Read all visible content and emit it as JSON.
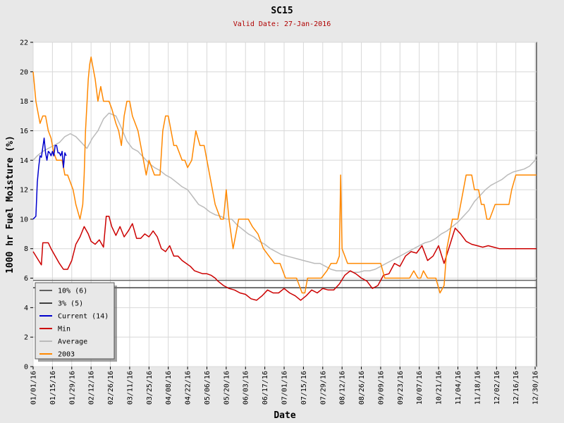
{
  "chart_data": {
    "type": "line",
    "title": "SC15",
    "subtitle": "Valid Date: 27-Jan-2016",
    "xlabel": "Date",
    "ylabel": "1000 hr Fuel Moisture (%)",
    "ylim": [
      0,
      22
    ],
    "yticks": [
      0,
      2,
      4,
      6,
      8,
      10,
      12,
      14,
      16,
      18,
      20,
      22
    ],
    "xlim": [
      "01/01/16",
      "12/31/16"
    ],
    "xticks": [
      "01/01/16",
      "01/15/16",
      "01/29/16",
      "02/12/16",
      "02/26/16",
      "03/11/16",
      "03/25/16",
      "04/08/16",
      "04/22/16",
      "05/06/16",
      "05/20/16",
      "06/03/16",
      "06/17/16",
      "07/01/16",
      "07/15/16",
      "07/29/16",
      "08/12/16",
      "08/26/16",
      "09/09/16",
      "09/23/16",
      "10/07/16",
      "10/21/16",
      "11/04/16",
      "11/18/16",
      "12/02/16",
      "12/16/16",
      "12/30/16"
    ],
    "grid": true,
    "legend_position": "bottom-left",
    "thresholds": [
      {
        "name": "10% (6)",
        "value": 5.85,
        "color": "#606060"
      },
      {
        "name": "3% (5)",
        "value": 5.35,
        "color": "#404040"
      }
    ],
    "series": [
      {
        "name": "Current (14)",
        "color": "#0000cc",
        "x": [
          "01/01/16",
          "01/03/16",
          "01/04/16",
          "01/05/16",
          "01/06/16",
          "01/07/16",
          "01/09/16",
          "01/10/16",
          "01/11/16",
          "01/12/16",
          "01/13/16",
          "01/14/16",
          "01/15/16",
          "01/16/16",
          "01/17/16",
          "01/18/16",
          "01/19/16",
          "01/20/16",
          "01/21/16",
          "01/22/16",
          "01/23/16",
          "01/24/16",
          "01/25/16"
        ],
        "y": [
          10,
          10.2,
          12.5,
          13.5,
          14.3,
          14.2,
          15.5,
          14.5,
          14,
          14.6,
          14.5,
          14.3,
          14.6,
          14.3,
          15,
          15,
          14.5,
          14.5,
          14.3,
          14.6,
          13.5,
          14.5,
          14.3
        ]
      },
      {
        "name": "Min",
        "color": "#cc0000",
        "x": [
          "01/01/16",
          "01/05/16",
          "01/07/16",
          "01/08/16",
          "01/12/16",
          "01/14/16",
          "01/17/16",
          "01/20/16",
          "01/23/16",
          "01/26/16",
          "01/29/16",
          "02/01/16",
          "02/04/16",
          "02/07/16",
          "02/10/16",
          "02/12/16",
          "02/15/16",
          "02/18/16",
          "02/21/16",
          "02/23/16",
          "02/25/16",
          "02/27/16",
          "03/01/16",
          "03/04/16",
          "03/07/16",
          "03/10/16",
          "03/13/16",
          "03/16/16",
          "03/19/16",
          "03/22/16",
          "03/25/16",
          "03/28/16",
          "03/31/16",
          "04/03/16",
          "04/06/16",
          "04/09/16",
          "04/12/16",
          "04/15/16",
          "04/18/16",
          "04/21/16",
          "04/24/16",
          "04/27/16",
          "04/30/16",
          "05/03/16",
          "05/06/16",
          "05/09/16",
          "05/12/16",
          "05/14/16",
          "05/18/16",
          "05/22/16",
          "05/26/16",
          "05/30/16",
          "06/03/16",
          "06/07/16",
          "06/11/16",
          "06/15/16",
          "06/19/16",
          "06/23/16",
          "06/27/16",
          "07/01/16",
          "07/05/16",
          "07/09/16",
          "07/13/16",
          "07/17/16",
          "07/21/16",
          "07/25/16",
          "07/29/16",
          "08/02/16",
          "08/06/16",
          "08/10/16",
          "08/14/16",
          "08/18/16",
          "08/22/16",
          "08/26/16",
          "08/30/16",
          "09/03/16",
          "09/07/16",
          "09/11/16",
          "09/15/16",
          "09/19/16",
          "09/23/16",
          "09/27/16",
          "10/01/16",
          "10/05/16",
          "10/09/16",
          "10/13/16",
          "10/17/16",
          "10/21/16",
          "10/25/16",
          "10/29/16",
          "11/02/16",
          "11/06/16",
          "11/10/16",
          "11/14/16",
          "11/18/16",
          "11/22/16",
          "11/26/16",
          "11/30/16",
          "12/04/16",
          "12/08/16",
          "12/12/16",
          "12/16/16",
          "12/20/16",
          "12/24/16",
          "12/28/16",
          "12/31/16"
        ],
        "y": [
          7.8,
          7.2,
          6.9,
          8.4,
          8.4,
          8.0,
          7.5,
          7.0,
          6.6,
          6.6,
          7.2,
          8.3,
          8.8,
          9.5,
          9.0,
          8.5,
          8.3,
          8.6,
          8.1,
          10.2,
          10.2,
          9.5,
          8.9,
          9.5,
          8.8,
          9.2,
          9.7,
          8.7,
          8.7,
          9.0,
          8.8,
          9.2,
          8.8,
          8.0,
          7.8,
          8.2,
          7.5,
          7.5,
          7.2,
          7.0,
          6.8,
          6.5,
          6.4,
          6.3,
          6.3,
          6.2,
          6.0,
          5.8,
          5.5,
          5.3,
          5.2,
          5.0,
          4.9,
          4.6,
          4.5,
          4.8,
          5.2,
          5.0,
          5.0,
          5.3,
          5.0,
          4.8,
          4.5,
          4.8,
          5.2,
          5.0,
          5.3,
          5.2,
          5.2,
          5.6,
          6.2,
          6.5,
          6.3,
          6.0,
          5.8,
          5.3,
          5.5,
          6.2,
          6.3,
          7.0,
          6.8,
          7.5,
          7.8,
          7.7,
          8.2,
          7.2,
          7.5,
          8.2,
          7.0,
          8.2,
          9.4,
          9.0,
          8.5,
          8.3,
          8.2,
          8.1,
          8.2,
          8.1,
          8.0,
          8.0,
          8.0,
          8.0,
          8.0,
          8.0,
          8.0,
          8.0
        ]
      },
      {
        "name": "Average",
        "color": "#bbbbbb",
        "x": [
          "01/01/16",
          "01/04/16",
          "01/08/16",
          "01/12/16",
          "01/16/16",
          "01/20/16",
          "01/24/16",
          "01/28/16",
          "02/01/16",
          "02/05/16",
          "02/09/16",
          "02/13/16",
          "02/17/16",
          "02/21/16",
          "02/25/16",
          "03/01/16",
          "03/05/16",
          "03/09/16",
          "03/13/16",
          "03/17/16",
          "03/21/16",
          "03/25/16",
          "03/29/16",
          "04/02/16",
          "04/06/16",
          "04/10/16",
          "04/14/16",
          "04/18/16",
          "04/22/16",
          "04/26/16",
          "04/30/16",
          "05/04/16",
          "05/08/16",
          "05/12/16",
          "05/16/16",
          "05/20/16",
          "05/24/16",
          "05/28/16",
          "06/01/16",
          "06/05/16",
          "06/09/16",
          "06/13/16",
          "06/17/16",
          "06/21/16",
          "06/25/16",
          "06/29/16",
          "07/03/16",
          "07/07/16",
          "07/11/16",
          "07/15/16",
          "07/19/16",
          "07/23/16",
          "07/27/16",
          "07/31/16",
          "08/04/16",
          "08/08/16",
          "08/12/16",
          "08/16/16",
          "08/20/16",
          "08/24/16",
          "08/28/16",
          "09/01/16",
          "09/05/16",
          "09/09/16",
          "09/13/16",
          "09/17/16",
          "09/21/16",
          "09/25/16",
          "09/29/16",
          "10/03/16",
          "10/07/16",
          "10/11/16",
          "10/15/16",
          "10/19/16",
          "10/23/16",
          "10/27/16",
          "10/31/16",
          "11/04/16",
          "11/08/16",
          "11/12/16",
          "11/16/16",
          "11/20/16",
          "11/24/16",
          "11/28/16",
          "12/02/16",
          "12/06/16",
          "12/10/16",
          "12/14/16",
          "12/18/16",
          "12/22/16",
          "12/26/16",
          "12/30/16",
          "12/31/16"
        ],
        "y": [
          14.0,
          14.3,
          14.6,
          14.8,
          15.0,
          15.2,
          15.6,
          15.8,
          15.6,
          15.2,
          14.8,
          15.5,
          16.0,
          16.8,
          17.2,
          17.0,
          16.2,
          15.3,
          14.8,
          14.6,
          14.2,
          13.8,
          13.5,
          13.3,
          13.0,
          12.8,
          12.5,
          12.2,
          12.0,
          11.5,
          11.0,
          10.8,
          10.5,
          10.3,
          10.2,
          10.0,
          10.0,
          9.6,
          9.3,
          9.0,
          8.8,
          8.5,
          8.3,
          8.0,
          7.8,
          7.6,
          7.5,
          7.4,
          7.3,
          7.2,
          7.1,
          7.0,
          7.0,
          6.8,
          6.6,
          6.5,
          6.5,
          6.5,
          6.4,
          6.4,
          6.5,
          6.5,
          6.6,
          6.8,
          7.0,
          7.2,
          7.4,
          7.6,
          7.8,
          8.0,
          8.2,
          8.4,
          8.5,
          8.7,
          9.0,
          9.2,
          9.5,
          9.8,
          10.2,
          10.6,
          11.2,
          11.6,
          12.0,
          12.3,
          12.5,
          12.7,
          13.0,
          13.2,
          13.3,
          13.4,
          13.6,
          14.0,
          14.4
        ]
      },
      {
        "name": "2003",
        "color": "#ff8800",
        "x": [
          "01/01/16",
          "01/02/16",
          "01/03/16",
          "01/05/16",
          "01/06/16",
          "01/08/16",
          "01/10/16",
          "01/12/16",
          "01/14/16",
          "01/16/16",
          "01/18/16",
          "01/20/16",
          "01/22/16",
          "01/24/16",
          "01/26/16",
          "01/28/16",
          "01/30/16",
          "02/01/16",
          "02/04/16",
          "02/06/16",
          "02/07/16",
          "02/08/16",
          "02/10/16",
          "02/11/16",
          "02/12/16",
          "02/13/16",
          "02/15/16",
          "02/17/16",
          "02/19/16",
          "02/21/16",
          "02/23/16",
          "02/25/16",
          "02/27/16",
          "03/01/16",
          "03/03/16",
          "03/05/16",
          "03/07/16",
          "03/09/16",
          "03/11/16",
          "03/13/16",
          "03/15/16",
          "03/17/16",
          "03/19/16",
          "03/21/16",
          "03/23/16",
          "03/25/16",
          "03/27/16",
          "03/29/16",
          "03/31/16",
          "04/02/16",
          "04/04/16",
          "04/06/16",
          "04/08/16",
          "04/10/16",
          "04/12/16",
          "04/14/16",
          "04/16/16",
          "04/18/16",
          "04/20/16",
          "04/22/16",
          "04/25/16",
          "04/28/16",
          "05/01/16",
          "05/04/16",
          "05/06/16",
          "05/08/16",
          "05/10/16",
          "05/12/16",
          "05/14/16",
          "05/16/16",
          "05/18/16",
          "05/20/16",
          "05/22/16",
          "05/25/16",
          "05/27/16",
          "05/29/16",
          "05/31/16",
          "06/01/16",
          "06/03/16",
          "06/05/16",
          "06/08/16",
          "06/12/16",
          "06/16/16",
          "06/20/16",
          "06/24/16",
          "06/28/16",
          "07/02/16",
          "07/06/16",
          "07/10/16",
          "07/14/16",
          "07/16/16",
          "07/18/16",
          "07/20/16",
          "07/24/16",
          "07/28/16",
          "08/01/16",
          "08/04/16",
          "08/06/16",
          "08/08/16",
          "08/10/16",
          "08/11/16",
          "08/12/16",
          "08/16/16",
          "08/20/16",
          "08/24/16",
          "08/28/16",
          "09/01/16",
          "09/05/16",
          "09/09/16",
          "09/12/16",
          "09/15/16",
          "09/20/16",
          "09/25/16",
          "09/30/16",
          "10/03/16",
          "10/06/16",
          "10/08/16",
          "10/10/16",
          "10/13/16",
          "10/16/16",
          "10/19/16",
          "10/22/16",
          "10/25/16",
          "10/27/16",
          "10/29/16",
          "10/31/16",
          "11/02/16",
          "11/04/16",
          "11/06/16",
          "11/08/16",
          "11/10/16",
          "11/12/16",
          "11/14/16",
          "11/16/16",
          "11/19/16",
          "11/21/16",
          "11/23/16",
          "11/25/16",
          "11/27/16",
          "11/29/16",
          "12/01/16",
          "12/03/16",
          "12/05/16",
          "12/07/16",
          "12/09/16",
          "12/11/16",
          "12/13/16",
          "12/16/16",
          "12/19/16",
          "12/22/16",
          "12/25/16",
          "12/27/16",
          "12/30/16",
          "12/31/16"
        ],
        "y": [
          20.0,
          19.0,
          18.0,
          17.0,
          16.5,
          17.0,
          17.0,
          16.0,
          15.5,
          14.5,
          14.0,
          14.0,
          14.0,
          13.0,
          13.0,
          12.5,
          12.0,
          11.0,
          10.0,
          11.0,
          13.0,
          16.0,
          19.5,
          20.5,
          21.0,
          20.5,
          19.5,
          18.0,
          19.0,
          18.0,
          18.0,
          18.0,
          17.5,
          16.5,
          16.0,
          15.0,
          17.0,
          18.0,
          18.0,
          17.0,
          16.5,
          16.0,
          15.0,
          14.0,
          13.0,
          14.0,
          13.5,
          13.0,
          13.0,
          13.0,
          16.0,
          17.0,
          17.0,
          16.0,
          15.0,
          15.0,
          14.5,
          14.0,
          14.0,
          13.5,
          14.0,
          16.0,
          15.0,
          15.0,
          14.0,
          13.0,
          12.0,
          11.0,
          10.5,
          10.0,
          10.0,
          12.0,
          10.0,
          8.0,
          9.0,
          10.0,
          10.0,
          10.0,
          10.0,
          10.0,
          9.5,
          9.0,
          8.0,
          7.5,
          7.0,
          7.0,
          6.0,
          6.0,
          6.0,
          5.0,
          5.0,
          6.0,
          6.0,
          6.0,
          6.0,
          6.5,
          7.0,
          7.0,
          7.0,
          7.5,
          13.0,
          8.0,
          7.0,
          7.0,
          7.0,
          7.0,
          7.0,
          7.0,
          7.0,
          6.0,
          6.0,
          6.0,
          6.0,
          6.0,
          6.5,
          6.0,
          6.0,
          6.5,
          6.0,
          6.0,
          6.0,
          5.0,
          5.5,
          8.0,
          9.0,
          10.0,
          10.0,
          10.0,
          11.0,
          12.0,
          13.0,
          13.0,
          13.0,
          12.0,
          12.0,
          11.0,
          11.0,
          10.0,
          10.0,
          10.5,
          11.0,
          11.0,
          11.0,
          11.0,
          11.0,
          11.0,
          12.0,
          13.0,
          13.0,
          13.0,
          13.0,
          13.0,
          13.0,
          13.0
        ]
      }
    ]
  }
}
